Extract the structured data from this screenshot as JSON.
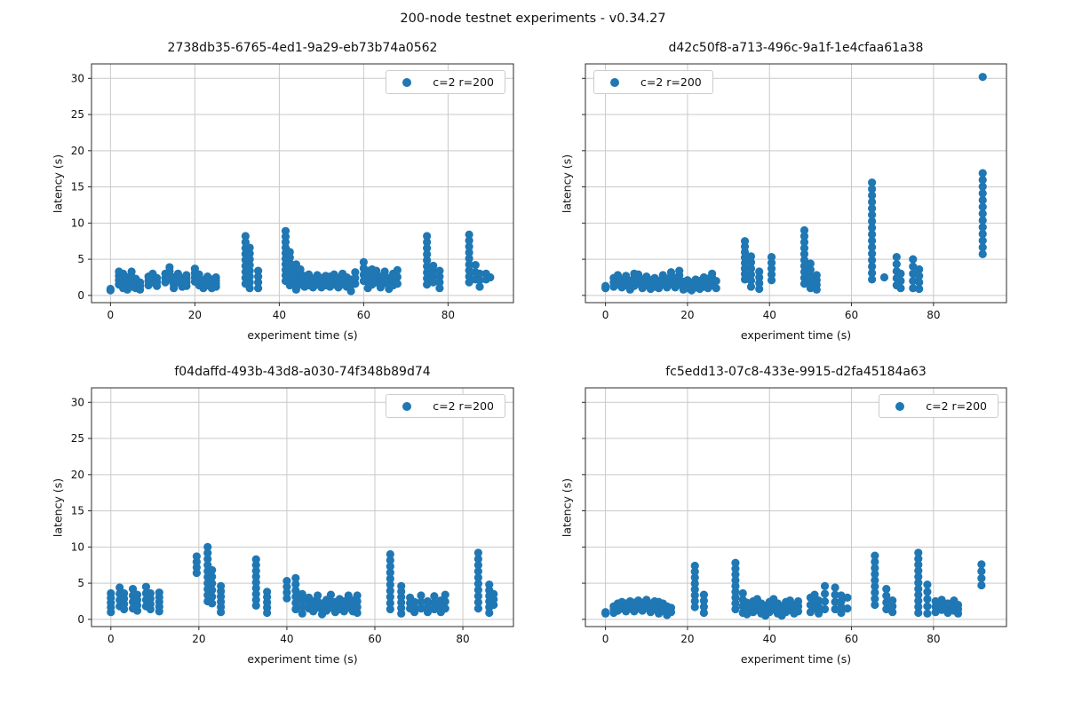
{
  "figure": {
    "title": "200-node testnet experiments - v0.34.27",
    "marker_color": "#1f77b4",
    "grid_color": "#c9c9c9",
    "spine_color": "#2b2b2b",
    "columns_format": "each column entry = [x, y_min, y_max, n_points] vertical stack of scatter points"
  },
  "chart_data": [
    {
      "type": "scatter",
      "title": "2738db35-6765-4ed1-9a29-eb73b74a0562",
      "legend": "c=2 r=200",
      "xlabel": "experiment time (s)",
      "ylabel": "latency (s)",
      "x_ticks": [
        0,
        20,
        40,
        60,
        80
      ],
      "y_ticks": [
        0,
        5,
        10,
        15,
        20,
        25,
        30
      ],
      "xlim": [
        -4.5,
        95.5
      ],
      "ylim": [
        -1.0,
        32.0
      ],
      "show_y_tick_labels": true,
      "legend_loc": "upper-right",
      "columns": [
        [
          0,
          0.7,
          0.9,
          2
        ],
        [
          2,
          1.5,
          3.3,
          4
        ],
        [
          3,
          1.0,
          3.0,
          4
        ],
        [
          4,
          0.8,
          2.5,
          4
        ],
        [
          5,
          1.2,
          3.3,
          4
        ],
        [
          6,
          1.0,
          2.3,
          3
        ],
        [
          7,
          0.8,
          1.8,
          3
        ],
        [
          9,
          1.4,
          2.6,
          3
        ],
        [
          10,
          1.8,
          3.0,
          3
        ],
        [
          11,
          1.3,
          2.4,
          3
        ],
        [
          13,
          1.8,
          3.0,
          3
        ],
        [
          14,
          2.2,
          3.9,
          4
        ],
        [
          15,
          1.0,
          2.5,
          4
        ],
        [
          16,
          1.8,
          3.0,
          3
        ],
        [
          17,
          1.2,
          2.4,
          3
        ],
        [
          18,
          1.3,
          2.8,
          4
        ],
        [
          20,
          1.9,
          3.7,
          4
        ],
        [
          21,
          1.4,
          2.9,
          4
        ],
        [
          22,
          1.0,
          2.1,
          3
        ],
        [
          23,
          1.4,
          2.6,
          3
        ],
        [
          24,
          1.0,
          2.2,
          3
        ],
        [
          25,
          1.2,
          2.5,
          4
        ],
        [
          32,
          1.6,
          8.2,
          9
        ],
        [
          33,
          1.0,
          6.6,
          8
        ],
        [
          35,
          1.0,
          3.4,
          4
        ],
        [
          41.5,
          2.0,
          8.9,
          10
        ],
        [
          42.5,
          1.4,
          6.0,
          7
        ],
        [
          44,
          0.8,
          4.3,
          5
        ],
        [
          45,
          1.5,
          3.6,
          4
        ],
        [
          46,
          1.2,
          2.7,
          3
        ],
        [
          47,
          1.4,
          2.9,
          3
        ],
        [
          48,
          1.1,
          2.3,
          3
        ],
        [
          49,
          1.5,
          2.8,
          3
        ],
        [
          50,
          1.1,
          2.4,
          3
        ],
        [
          51,
          1.4,
          2.7,
          3
        ],
        [
          52,
          1.2,
          2.6,
          3
        ],
        [
          53,
          1.5,
          2.9,
          3
        ],
        [
          54,
          1.1,
          2.4,
          3
        ],
        [
          55,
          1.5,
          3.0,
          3
        ],
        [
          56,
          1.2,
          2.5,
          3
        ],
        [
          57,
          0.6,
          2.2,
          3
        ],
        [
          58,
          1.6,
          3.2,
          3
        ],
        [
          60,
          2.0,
          4.6,
          4
        ],
        [
          61,
          1.0,
          3.4,
          4
        ],
        [
          62,
          1.5,
          3.6,
          3
        ],
        [
          63,
          1.8,
          3.4,
          3
        ],
        [
          64,
          1.1,
          2.6,
          3
        ],
        [
          65,
          1.7,
          3.3,
          3
        ],
        [
          66,
          0.9,
          2.4,
          3
        ],
        [
          67,
          1.4,
          3.0,
          3
        ],
        [
          68,
          1.6,
          3.5,
          3
        ],
        [
          75,
          1.5,
          8.2,
          9
        ],
        [
          76.5,
          1.8,
          4.1,
          4
        ],
        [
          78,
          1.0,
          3.4,
          4
        ],
        [
          85,
          1.8,
          8.4,
          9
        ],
        [
          86.5,
          2.2,
          4.2,
          3
        ],
        [
          87.5,
          1.2,
          3.0,
          3
        ],
        [
          89,
          2.2,
          3.0,
          2
        ],
        [
          90,
          2.4,
          2.6,
          1
        ]
      ]
    },
    {
      "type": "scatter",
      "title": "d42c50f8-a713-496c-9a1f-1e4cfaa61a38",
      "legend": "c=2 r=200",
      "xlabel": "experiment time (s)",
      "ylabel": "latency (s)",
      "x_ticks": [
        0,
        20,
        40,
        60,
        80
      ],
      "y_ticks": [
        0,
        5,
        10,
        15,
        20,
        25,
        30
      ],
      "xlim": [
        -4.9,
        97.8
      ],
      "ylim": [
        -1.0,
        32.0
      ],
      "show_y_tick_labels": false,
      "legend_loc": "upper-left",
      "columns": [
        [
          0,
          1.0,
          1.3,
          2
        ],
        [
          2,
          1.2,
          2.4,
          3
        ],
        [
          3,
          1.5,
          2.8,
          3
        ],
        [
          4,
          1.1,
          2.2,
          3
        ],
        [
          5,
          1.4,
          2.7,
          3
        ],
        [
          6,
          0.8,
          2.0,
          3
        ],
        [
          7,
          1.3,
          3.0,
          4
        ],
        [
          8,
          1.6,
          2.9,
          3
        ],
        [
          9,
          1.0,
          2.2,
          3
        ],
        [
          10,
          1.4,
          2.6,
          3
        ],
        [
          11,
          0.9,
          2.1,
          3
        ],
        [
          12,
          1.2,
          2.4,
          3
        ],
        [
          13,
          1.0,
          2.0,
          3
        ],
        [
          14,
          1.5,
          2.8,
          3
        ],
        [
          15,
          1.1,
          2.3,
          3
        ],
        [
          16,
          1.6,
          3.2,
          4
        ],
        [
          17,
          1.1,
          2.4,
          3
        ],
        [
          18,
          1.5,
          3.4,
          4
        ],
        [
          19,
          0.8,
          1.9,
          3
        ],
        [
          20,
          1.0,
          2.1,
          3
        ],
        [
          21,
          0.7,
          1.8,
          3
        ],
        [
          22,
          1.1,
          2.2,
          3
        ],
        [
          23,
          0.9,
          2.0,
          3
        ],
        [
          24,
          1.2,
          2.5,
          3
        ],
        [
          25,
          1.0,
          2.3,
          3
        ],
        [
          26,
          1.4,
          3.0,
          4
        ],
        [
          27,
          1.0,
          2.0,
          2
        ],
        [
          34,
          2.2,
          7.5,
          8
        ],
        [
          35.5,
          1.2,
          5.4,
          6
        ],
        [
          37.5,
          0.9,
          3.3,
          4
        ],
        [
          40.5,
          2.1,
          5.3,
          5
        ],
        [
          48.5,
          1.6,
          9.0,
          10
        ],
        [
          50,
          1.0,
          4.4,
          5
        ],
        [
          51.5,
          0.8,
          2.8,
          4
        ],
        [
          65,
          2.2,
          15.6,
          16
        ],
        [
          68,
          2.4,
          2.6,
          1
        ],
        [
          71,
          1.4,
          5.3,
          5
        ],
        [
          72,
          1.0,
          3.0,
          3
        ],
        [
          75,
          1.0,
          5.0,
          5
        ],
        [
          76.5,
          0.9,
          3.6,
          4
        ],
        [
          92,
          5.7,
          16.9,
          13
        ],
        [
          92,
          30.1,
          30.3,
          1
        ]
      ]
    },
    {
      "type": "scatter",
      "title": "f04daffd-493b-43d8-a030-74f348b89d74",
      "legend": "c=2 r=200",
      "xlabel": "experiment time (s)",
      "ylabel": "latency (s)",
      "x_ticks": [
        0,
        20,
        40,
        60,
        80
      ],
      "y_ticks": [
        0,
        5,
        10,
        15,
        20,
        25,
        30
      ],
      "xlim": [
        -4.4,
        91.5
      ],
      "ylim": [
        -1.0,
        32.0
      ],
      "show_y_tick_labels": true,
      "legend_loc": "upper-right",
      "columns": [
        [
          0,
          1.0,
          3.6,
          5
        ],
        [
          2,
          1.8,
          4.4,
          4
        ],
        [
          3,
          1.4,
          3.6,
          4
        ],
        [
          5,
          1.5,
          4.2,
          4
        ],
        [
          6,
          1.2,
          3.4,
          4
        ],
        [
          8,
          1.8,
          4.5,
          4
        ],
        [
          9,
          1.4,
          3.6,
          4
        ],
        [
          11,
          1.1,
          3.7,
          5
        ],
        [
          19.5,
          6.4,
          8.7,
          4
        ],
        [
          22,
          2.5,
          10.0,
          10
        ],
        [
          23,
          2.2,
          6.8,
          6
        ],
        [
          25,
          1.0,
          4.6,
          6
        ],
        [
          33,
          1.9,
          8.3,
          9
        ],
        [
          35.5,
          0.9,
          3.8,
          5
        ],
        [
          40,
          2.9,
          5.3,
          4
        ],
        [
          42,
          1.4,
          5.7,
          6
        ],
        [
          43.5,
          0.8,
          3.5,
          4
        ],
        [
          45,
          1.5,
          3.0,
          3
        ],
        [
          46,
          1.1,
          2.5,
          3
        ],
        [
          47,
          1.6,
          3.3,
          3
        ],
        [
          48,
          0.7,
          2.2,
          3
        ],
        [
          49,
          1.2,
          2.7,
          3
        ],
        [
          50,
          1.6,
          3.4,
          3
        ],
        [
          51,
          1.0,
          2.4,
          3
        ],
        [
          52,
          1.4,
          2.8,
          3
        ],
        [
          53,
          1.1,
          2.5,
          3
        ],
        [
          54,
          1.6,
          3.3,
          3
        ],
        [
          55,
          1.1,
          2.6,
          3
        ],
        [
          56,
          0.9,
          3.3,
          4
        ],
        [
          63.5,
          1.4,
          9.0,
          10
        ],
        [
          66,
          0.8,
          4.6,
          6
        ],
        [
          68,
          1.5,
          3.0,
          3
        ],
        [
          69,
          1.0,
          2.4,
          3
        ],
        [
          70.5,
          1.5,
          3.3,
          3
        ],
        [
          72,
          1.0,
          2.5,
          3
        ],
        [
          73.5,
          1.4,
          3.2,
          3
        ],
        [
          75,
          1.0,
          2.6,
          3
        ],
        [
          76,
          1.5,
          3.4,
          3
        ],
        [
          83.5,
          1.5,
          9.2,
          10
        ],
        [
          86,
          0.9,
          4.8,
          6
        ],
        [
          87,
          2.0,
          3.5,
          3
        ]
      ]
    },
    {
      "type": "scatter",
      "title": "fc5edd13-07c8-433e-9915-d2fa45184a63",
      "legend": "c=2 r=200",
      "xlabel": "experiment time (s)",
      "ylabel": "latency (s)",
      "x_ticks": [
        0,
        20,
        40,
        60,
        80
      ],
      "y_ticks": [
        0,
        5,
        10,
        15,
        20,
        25,
        30
      ],
      "xlim": [
        -4.9,
        97.8
      ],
      "ylim": [
        -1.0,
        32.0
      ],
      "show_y_tick_labels": false,
      "legend_loc": "upper-right",
      "columns": [
        [
          0,
          0.8,
          1.0,
          2
        ],
        [
          2,
          0.9,
          1.8,
          3
        ],
        [
          3,
          1.2,
          2.2,
          3
        ],
        [
          4,
          1.5,
          2.4,
          3
        ],
        [
          5,
          1.1,
          2.2,
          3
        ],
        [
          6,
          1.5,
          2.5,
          3
        ],
        [
          7,
          1.1,
          2.3,
          3
        ],
        [
          8,
          1.5,
          2.6,
          3
        ],
        [
          9,
          1.2,
          2.3,
          3
        ],
        [
          10,
          1.6,
          2.7,
          3
        ],
        [
          11,
          1.0,
          2.2,
          3
        ],
        [
          12,
          1.4,
          2.5,
          3
        ],
        [
          13,
          0.8,
          2.4,
          4
        ],
        [
          14,
          1.2,
          2.2,
          3
        ],
        [
          15,
          0.6,
          1.8,
          3
        ],
        [
          16,
          1.0,
          1.6,
          2
        ],
        [
          21.8,
          1.7,
          7.4,
          8
        ],
        [
          24,
          0.9,
          3.4,
          4
        ],
        [
          31.7,
          1.4,
          7.8,
          9
        ],
        [
          33.5,
          0.9,
          3.6,
          4
        ],
        [
          34.5,
          0.7,
          2.3,
          3
        ],
        [
          36,
          1.0,
          2.5,
          3
        ],
        [
          37,
          1.3,
          2.8,
          3
        ],
        [
          38,
          0.8,
          2.2,
          3
        ],
        [
          39,
          0.5,
          1.9,
          3
        ],
        [
          40,
          1.0,
          2.4,
          3
        ],
        [
          41,
          1.4,
          2.8,
          3
        ],
        [
          42,
          0.8,
          2.2,
          3
        ],
        [
          43,
          0.5,
          1.8,
          3
        ],
        [
          44,
          1.0,
          2.4,
          3
        ],
        [
          45,
          1.3,
          2.6,
          3
        ],
        [
          46,
          0.8,
          2.0,
          3
        ],
        [
          47,
          1.1,
          2.5,
          3
        ],
        [
          50,
          1.0,
          3.0,
          3
        ],
        [
          51,
          1.5,
          3.4,
          3
        ],
        [
          52,
          0.8,
          2.6,
          3
        ],
        [
          53.5,
          1.4,
          4.6,
          4
        ],
        [
          56,
          1.4,
          4.4,
          4
        ],
        [
          57.5,
          0.9,
          3.3,
          4
        ],
        [
          59,
          1.5,
          3.0,
          2
        ],
        [
          65.7,
          2.0,
          8.8,
          9
        ],
        [
          68.5,
          1.4,
          4.2,
          4
        ],
        [
          70,
          1.0,
          2.6,
          3
        ],
        [
          76.3,
          0.9,
          9.2,
          11
        ],
        [
          78.5,
          0.8,
          4.8,
          5
        ],
        [
          80.5,
          1.0,
          2.5,
          3
        ],
        [
          82,
          1.3,
          2.7,
          3
        ],
        [
          83.5,
          0.9,
          2.2,
          3
        ],
        [
          85,
          1.2,
          2.6,
          3
        ],
        [
          86,
          0.8,
          2.0,
          3
        ],
        [
          91.7,
          4.7,
          7.6,
          4
        ]
      ]
    }
  ]
}
